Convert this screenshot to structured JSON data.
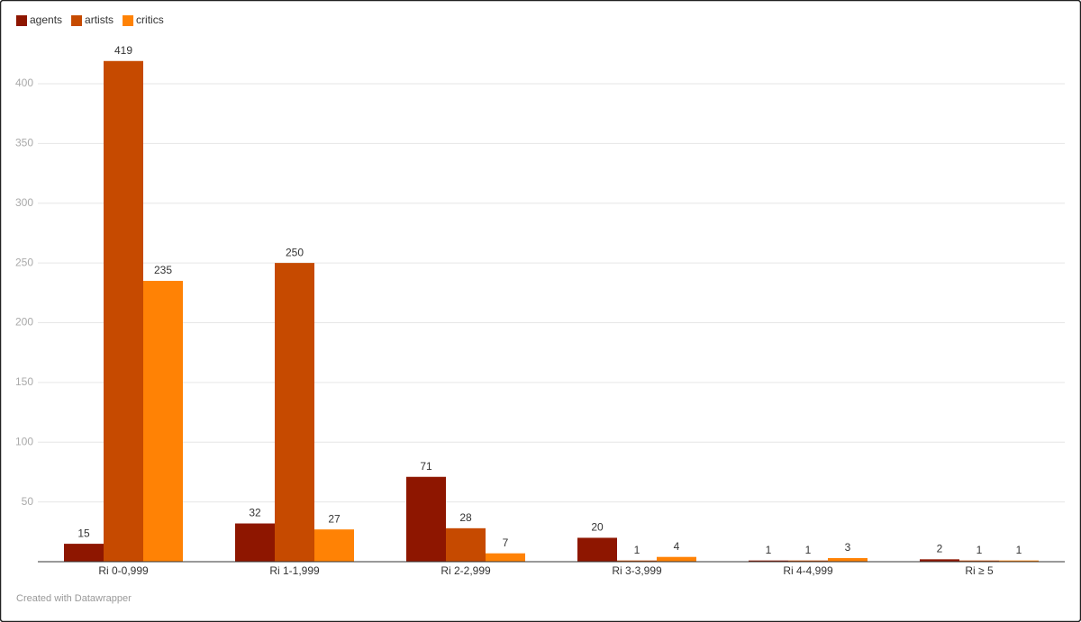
{
  "chart_data": {
    "type": "bar",
    "categories": [
      "Ri 0-0,999",
      "Ri 1-1,999",
      "Ri 2-2,999",
      "Ri 3-3,999",
      "Ri 4-4,999",
      "Ri ≥ 5"
    ],
    "series": [
      {
        "name": "agents",
        "color": "#8e1600",
        "values": [
          15,
          32,
          71,
          20,
          1,
          2
        ]
      },
      {
        "name": "artists",
        "color": "#c64a00",
        "values": [
          419,
          250,
          28,
          1,
          1,
          1
        ]
      },
      {
        "name": "critics",
        "color": "#ff8205",
        "values": [
          235,
          27,
          7,
          4,
          3,
          1
        ]
      }
    ],
    "ylim": [
      0,
      400
    ],
    "yticks": [
      50,
      100,
      150,
      200,
      250,
      300,
      350,
      400
    ],
    "grid": true,
    "legend": "top-left",
    "footer": "Created with Datawrapper"
  }
}
